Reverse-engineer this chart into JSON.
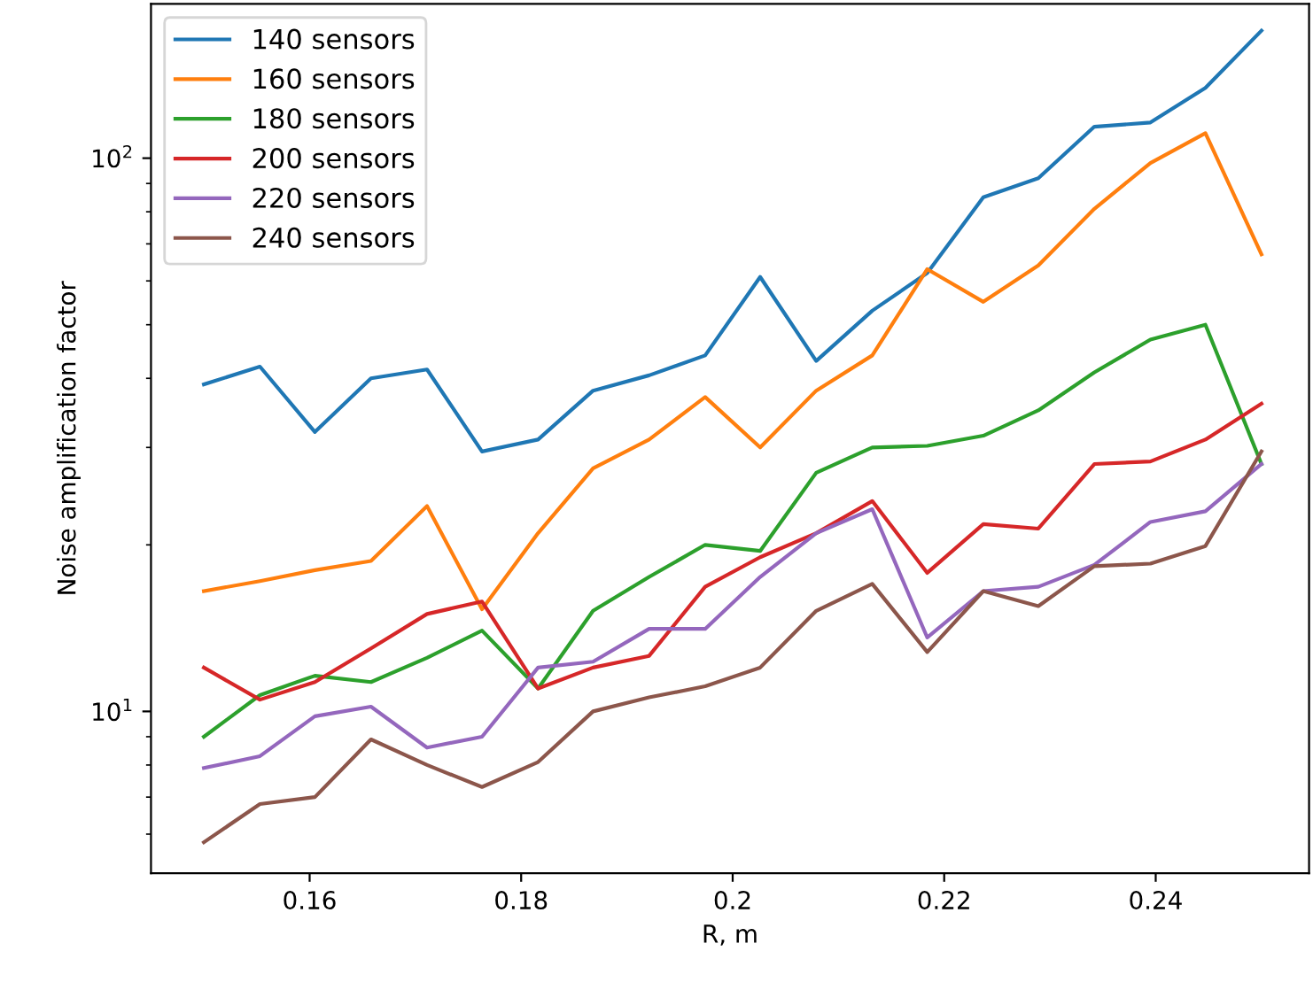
{
  "chart_data": {
    "type": "line",
    "xlabel": "R, m",
    "ylabel": "Noise amplification factor",
    "log": "y",
    "x": [
      0.15,
      0.1553,
      0.1605,
      0.1658,
      0.1711,
      0.1763,
      0.1816,
      0.1868,
      0.1921,
      0.1974,
      0.2026,
      0.2079,
      0.2132,
      0.2184,
      0.2237,
      0.2289,
      0.2342,
      0.2395,
      0.2447,
      0.25
    ],
    "series": [
      {
        "name": "140 sensors",
        "color": "#1f77b4",
        "values": [
          39,
          42,
          32,
          40,
          41.5,
          29.5,
          31,
          38,
          40.5,
          44,
          61,
          43,
          53,
          62,
          85,
          92,
          114,
          116,
          134,
          170
        ]
      },
      {
        "name": "160 sensors",
        "color": "#ff7f0e",
        "values": [
          16.5,
          17.2,
          18,
          18.7,
          23.5,
          15.3,
          21,
          27.5,
          31,
          37,
          30,
          38,
          44,
          63,
          55,
          64,
          81,
          98,
          111,
          67
        ]
      },
      {
        "name": "180 sensors",
        "color": "#2ca02c",
        "values": [
          9,
          10.7,
          11.6,
          11.3,
          12.5,
          14,
          11,
          15.2,
          17.5,
          20,
          19.5,
          27,
          30,
          30.2,
          31.5,
          35,
          41,
          47,
          50,
          28
        ]
      },
      {
        "name": "200 sensors",
        "color": "#d62728",
        "values": [
          12,
          10.5,
          11.3,
          13,
          15,
          15.8,
          11,
          12,
          12.6,
          16.8,
          19,
          21,
          24,
          17.8,
          21.8,
          21.4,
          28,
          28.3,
          31,
          36
        ]
      },
      {
        "name": "220 sensors",
        "color": "#9467bd",
        "values": [
          7.9,
          8.3,
          9.8,
          10.2,
          8.6,
          9,
          12,
          12.3,
          14.1,
          14.1,
          17.5,
          21,
          23.2,
          13.6,
          16.5,
          16.8,
          18.4,
          22,
          23,
          28
        ]
      },
      {
        "name": "240 sensors",
        "color": "#8c564b",
        "values": [
          5.8,
          6.8,
          7,
          8.9,
          8,
          7.3,
          8.1,
          10,
          10.6,
          11.1,
          12,
          15.2,
          17,
          12.8,
          16.5,
          15.5,
          18.3,
          18.5,
          19.9,
          29.5
        ]
      }
    ],
    "xlim": [
      0.145,
      0.2545
    ],
    "ylim": [
      5.1,
      190
    ],
    "xticks": [
      0.16,
      0.18,
      0.2,
      0.22,
      0.24
    ],
    "yticks": [
      {
        "value": 10,
        "label": "10$^{1}$"
      },
      {
        "value": 100,
        "label": "10$^{2}$"
      }
    ],
    "legend": "top left",
    "grid": false,
    "marker": "none",
    "line_style": "solid"
  }
}
